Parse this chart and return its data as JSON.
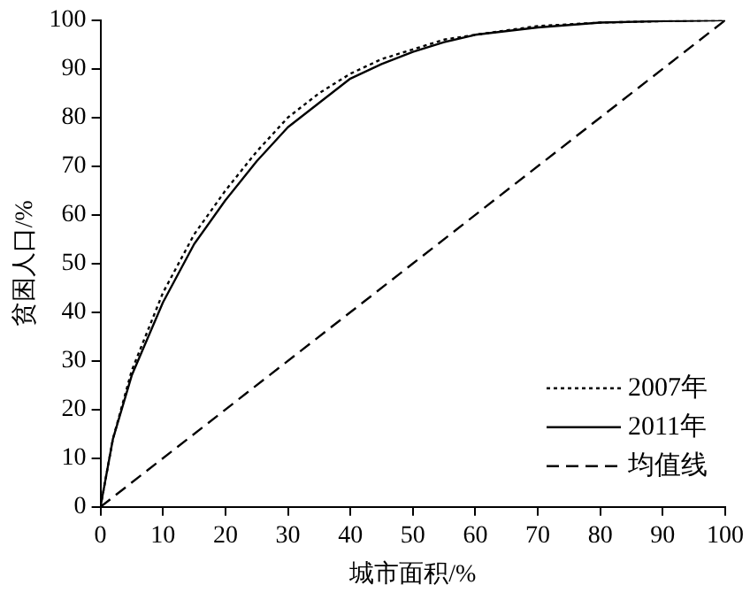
{
  "chart_data": {
    "type": "line",
    "xlabel": "城市面积/%",
    "ylabel": "贫困人口/%",
    "xlim": [
      0,
      100
    ],
    "xticks": [
      0,
      10,
      20,
      30,
      40,
      50,
      60,
      70,
      80,
      90,
      100
    ],
    "ylim": [
      0,
      100
    ],
    "yticks": [
      0,
      10,
      20,
      30,
      40,
      50,
      60,
      70,
      80,
      90,
      100
    ],
    "grid": false,
    "legend": "bottom right",
    "marker": "none",
    "series": [
      {
        "name": "2007年",
        "color": "#000000",
        "line_style": "dotted",
        "x": [
          0,
          2,
          5,
          10,
          15,
          20,
          25,
          30,
          35,
          40,
          45,
          50,
          55,
          60,
          70,
          80,
          90,
          100
        ],
        "values": [
          0,
          14,
          28,
          44,
          56,
          65,
          73,
          80,
          85,
          89,
          92,
          94,
          96,
          97,
          98.8,
          99.5,
          99.8,
          100
        ]
      },
      {
        "name": "2011年",
        "color": "#000000",
        "line_style": "solid",
        "x": [
          0,
          2,
          5,
          10,
          15,
          20,
          25,
          30,
          35,
          40,
          45,
          50,
          55,
          60,
          70,
          80,
          90,
          100
        ],
        "values": [
          0,
          14,
          27,
          42,
          54,
          63,
          71,
          78,
          83,
          88,
          91,
          93.5,
          95.5,
          97,
          98.5,
          99.5,
          99.8,
          100
        ]
      },
      {
        "name": "均值线",
        "color": "#000000",
        "line_style": "dashed",
        "x": [
          0,
          50,
          100
        ],
        "values": [
          0,
          50,
          100
        ]
      }
    ]
  }
}
